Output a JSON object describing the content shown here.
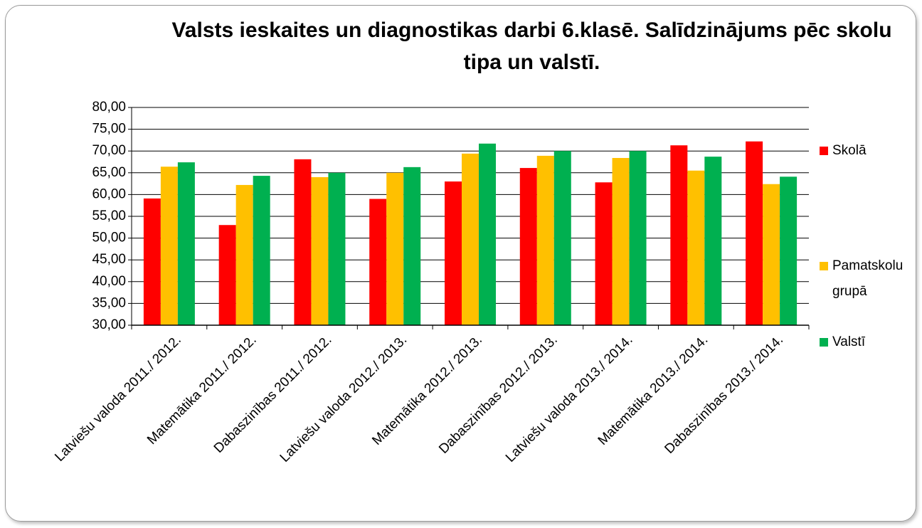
{
  "chart_data": {
    "type": "bar",
    "title": "Valsts ieskaites un diagnostikas darbi 6.klasē. Salīdzinājums pēc skolu tipa un valstī.",
    "categories": [
      "Latviešu valoda 2011./ 2012.",
      "Matemātika 2011./ 2012.",
      "Dabaszinības 2011./ 2012.",
      "Latviešu valoda 2012./ 2013.",
      "Matemātika 2012./ 2013.",
      "Dabaszinības 2012./ 2013.",
      "Latviešu valoda 2013./ 2014.",
      "Matemātika 2013./ 2014.",
      "Dabaszinības 2013./ 2014."
    ],
    "series": [
      {
        "name": "Skolā",
        "color": "#ff0000",
        "values": [
          59.1,
          53.0,
          68.1,
          59.0,
          63.0,
          66.1,
          62.8,
          71.3,
          72.2
        ]
      },
      {
        "name": "Pamatskolu grupā",
        "color": "#ffc000",
        "values": [
          66.4,
          62.2,
          64.0,
          65.0,
          69.4,
          68.9,
          68.4,
          65.5,
          62.4
        ]
      },
      {
        "name": "Valstī",
        "color": "#00b050",
        "values": [
          67.4,
          64.3,
          65.0,
          66.3,
          71.7,
          70.0,
          70.0,
          68.7,
          64.1
        ]
      }
    ],
    "ylim": [
      30,
      80
    ],
    "yticks": [
      {
        "value": 30,
        "label": "30,00"
      },
      {
        "value": 35,
        "label": "35,00"
      },
      {
        "value": 40,
        "label": "40,00"
      },
      {
        "value": 45,
        "label": "45,00"
      },
      {
        "value": 50,
        "label": "50,00"
      },
      {
        "value": 55,
        "label": "55,00"
      },
      {
        "value": 60,
        "label": "60,00"
      },
      {
        "value": 65,
        "label": "65,00"
      },
      {
        "value": 70,
        "label": "70,00"
      },
      {
        "value": 75,
        "label": "75,00"
      },
      {
        "value": 80,
        "label": "80,00"
      }
    ],
    "grid": true,
    "legend": "right"
  }
}
